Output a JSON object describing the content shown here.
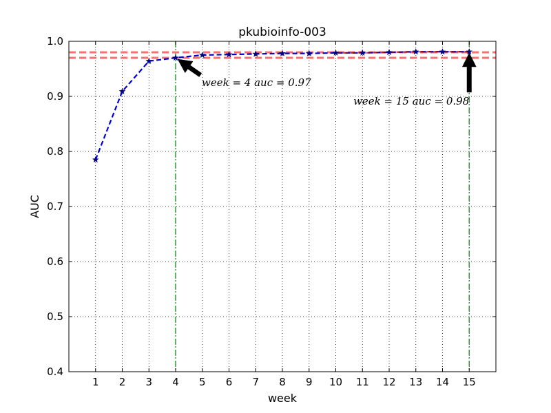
{
  "chart_data": {
    "type": "line",
    "title": "pkubioinfo-003",
    "xlabel": "week",
    "ylabel": "AUC",
    "x": [
      1,
      2,
      3,
      4,
      5,
      6,
      7,
      8,
      9,
      10,
      11,
      12,
      13,
      14,
      15
    ],
    "xlim": [
      0,
      16
    ],
    "ylim": [
      0.4,
      1.0
    ],
    "xticks": [
      1,
      2,
      3,
      4,
      5,
      6,
      7,
      8,
      9,
      10,
      11,
      12,
      13,
      14,
      15
    ],
    "xtick_labels": [
      "1",
      "2",
      "3",
      "4",
      "5",
      "6",
      "7",
      "8",
      "9",
      "10",
      "11",
      "12",
      "13",
      "14",
      "15"
    ],
    "yticks": [
      0.4,
      0.5,
      0.6,
      0.7,
      0.8,
      0.9,
      1.0
    ],
    "ytick_labels": [
      "0.4",
      "0.5",
      "0.6",
      "0.7",
      "0.8",
      "0.9",
      "1.0"
    ],
    "grid": true,
    "series": [
      {
        "values": [
          0.785,
          0.909,
          0.964,
          0.97,
          0.975,
          0.976,
          0.977,
          0.978,
          0.978,
          0.979,
          0.979,
          0.98,
          0.981,
          0.981,
          0.981
        ],
        "color": "#0000cc",
        "overlay_color": "#990000",
        "overlay_from_x": 10,
        "marker_color": "#000080",
        "line_style": "dashed",
        "marker": "star"
      }
    ],
    "reference_lines": {
      "horizontal": [
        {
          "y": 0.97,
          "color": "#ff6f6f"
        },
        {
          "y": 0.98,
          "color": "#ff6f6f"
        }
      ],
      "vertical": [
        {
          "x": 4,
          "color": "#2e9e2e"
        },
        {
          "x": 15,
          "color": "#2e9e2e"
        }
      ]
    },
    "annotations": [
      {
        "text": "week = 4 auc = 0.97",
        "point_x": 4,
        "point_y": 0.97,
        "arrow_color": "#000000"
      },
      {
        "text": "week = 15 auc = 0.98",
        "point_x": 15,
        "point_y": 0.98,
        "arrow_color": "#000000"
      }
    ]
  }
}
